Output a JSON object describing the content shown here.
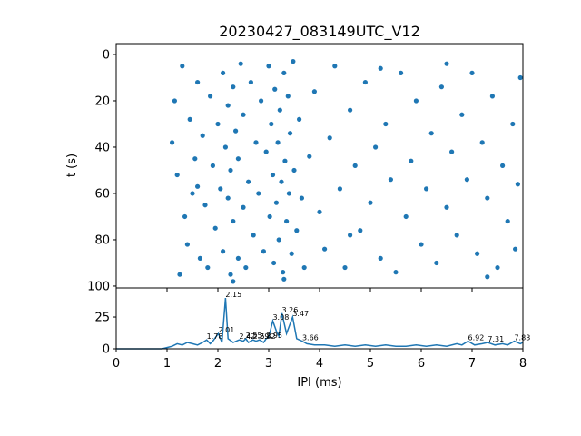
{
  "chart_data": [
    {
      "type": "scatter",
      "title": "20230427_083149UTC_V12",
      "ylabel": "t (s)",
      "color": "#1f77b4",
      "xlim": [
        0,
        8
      ],
      "ylim": [
        100.8,
        -4.7
      ],
      "yticks": [
        0,
        20,
        40,
        60,
        80,
        100
      ],
      "x": [
        1.1,
        1.15,
        1.2,
        1.25,
        1.3,
        1.35,
        1.4,
        1.45,
        1.5,
        1.55,
        1.6,
        1.65,
        1.7,
        1.75,
        1.8,
        1.85,
        1.9,
        1.95,
        2.0,
        2.05,
        2.1,
        2.1,
        2.15,
        2.2,
        2.2,
        2.25,
        2.25,
        2.3,
        2.3,
        2.35,
        2.4,
        2.4,
        2.45,
        2.5,
        2.5,
        2.55,
        2.6,
        2.65,
        2.7,
        2.75,
        2.8,
        2.85,
        2.9,
        2.95,
        3.0,
        3.02,
        3.05,
        3.08,
        3.1,
        3.12,
        3.15,
        3.18,
        3.2,
        3.22,
        3.25,
        3.28,
        3.3,
        3.32,
        3.35,
        3.38,
        3.4,
        3.42,
        3.45,
        3.48,
        3.5,
        3.55,
        3.6,
        3.65,
        3.7,
        3.8,
        3.9,
        4.0,
        4.1,
        4.2,
        4.3,
        4.4,
        4.5,
        4.6,
        4.7,
        4.8,
        4.9,
        5.0,
        5.1,
        5.2,
        5.3,
        5.4,
        5.5,
        5.6,
        5.7,
        5.8,
        5.9,
        6.0,
        6.1,
        6.2,
        6.3,
        6.4,
        6.5,
        6.6,
        6.7,
        6.8,
        6.9,
        7.0,
        7.1,
        7.2,
        7.3,
        7.4,
        7.5,
        7.6,
        7.7,
        7.8,
        7.9,
        7.95,
        7.85,
        7.3,
        6.5,
        5.2,
        4.6,
        2.3,
        3.3,
        1.6
      ],
      "y": [
        38,
        20,
        52,
        95,
        5,
        70,
        82,
        28,
        60,
        45,
        12,
        88,
        35,
        65,
        92,
        18,
        48,
        75,
        30,
        58,
        8,
        85,
        40,
        62,
        22,
        95,
        50,
        14,
        72,
        33,
        88,
        45,
        4,
        66,
        26,
        92,
        55,
        12,
        78,
        38,
        60,
        20,
        85,
        42,
        5,
        70,
        30,
        52,
        90,
        15,
        64,
        38,
        80,
        24,
        55,
        94,
        8,
        46,
        72,
        18,
        60,
        34,
        86,
        3,
        50,
        76,
        28,
        62,
        92,
        44,
        16,
        68,
        84,
        36,
        5,
        58,
        92,
        24,
        48,
        76,
        12,
        64,
        40,
        88,
        30,
        54,
        94,
        8,
        70,
        46,
        20,
        82,
        58,
        34,
        90,
        14,
        66,
        42,
        78,
        26,
        54,
        8,
        86,
        38,
        62,
        18,
        92,
        48,
        72,
        30,
        56,
        10,
        84,
        96,
        4,
        6,
        78,
        98,
        97,
        57
      ]
    },
    {
      "type": "line",
      "xlabel": "IPI (ms)",
      "color": "#1f77b4",
      "xlim": [
        0,
        8
      ],
      "xticks": [
        0,
        1,
        2,
        3,
        4,
        5,
        6,
        7,
        8
      ],
      "ylim": [
        0,
        47.9
      ],
      "yticks": [
        0,
        25
      ],
      "x": [
        0,
        0.5,
        0.9,
        1.0,
        1.1,
        1.2,
        1.3,
        1.4,
        1.5,
        1.6,
        1.7,
        1.78,
        1.85,
        1.9,
        2.01,
        2.08,
        2.15,
        2.2,
        2.3,
        2.42,
        2.5,
        2.55,
        2.6,
        2.69,
        2.75,
        2.82,
        2.9,
        2.95,
        3.0,
        3.08,
        3.15,
        3.2,
        3.26,
        3.35,
        3.47,
        3.55,
        3.66,
        3.75,
        3.9,
        4.1,
        4.3,
        4.5,
        4.7,
        4.9,
        5.1,
        5.3,
        5.5,
        5.7,
        5.9,
        6.1,
        6.3,
        6.5,
        6.7,
        6.8,
        6.92,
        7.05,
        7.2,
        7.31,
        7.45,
        7.6,
        7.7,
        7.83,
        7.95,
        8.0
      ],
      "values": [
        0,
        0,
        0,
        1,
        2,
        4,
        3,
        5,
        4,
        3,
        5,
        7,
        4,
        6,
        12,
        5,
        40,
        8,
        5,
        7,
        6,
        8,
        5,
        7,
        6,
        7,
        5,
        8,
        9,
        22,
        14,
        10,
        28,
        12,
        25,
        8,
        6,
        4,
        3,
        3,
        2,
        3,
        2,
        3,
        2,
        3,
        2,
        2,
        3,
        2,
        3,
        2,
        4,
        3,
        6,
        3,
        4,
        5,
        3,
        4,
        3,
        6,
        4,
        5
      ],
      "annotations": [
        {
          "x": 1.78,
          "y": 7,
          "label": "1.78"
        },
        {
          "x": 2.01,
          "y": 12,
          "label": "2.01"
        },
        {
          "x": 2.15,
          "y": 40,
          "label": "2.15"
        },
        {
          "x": 2.42,
          "y": 7,
          "label": "2.42"
        },
        {
          "x": 2.55,
          "y": 8,
          "label": "2.55"
        },
        {
          "x": 2.69,
          "y": 7,
          "label": "2.69"
        },
        {
          "x": 2.82,
          "y": 7,
          "label": "2.82"
        },
        {
          "x": 2.95,
          "y": 8,
          "label": "2.95"
        },
        {
          "x": 3.08,
          "y": 22,
          "label": "3.08"
        },
        {
          "x": 3.26,
          "y": 28,
          "label": "3.26"
        },
        {
          "x": 3.47,
          "y": 25,
          "label": "3.47"
        },
        {
          "x": 3.66,
          "y": 6,
          "label": "3.66"
        },
        {
          "x": 6.92,
          "y": 6,
          "label": "6.92"
        },
        {
          "x": 7.31,
          "y": 5,
          "label": "7.31"
        },
        {
          "x": 7.83,
          "y": 6,
          "label": "7.83"
        }
      ]
    }
  ]
}
